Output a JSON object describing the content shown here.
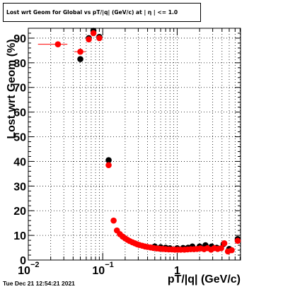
{
  "title": "Lost wrt Geom for Global vs pT/|q| (GeV/c) at | η | <= 1.0",
  "footer": "Tue Dec 21 12:54:21 2021",
  "chart_data": {
    "type": "scatter",
    "title": "Lost wrt Geom for Global vs pT/|q| (GeV/c) at | η | <= 1.0",
    "xlabel": "pT/|q| (GeV/c)",
    "ylabel": "Lost wrt Geom (%)",
    "xscale": "log",
    "xlim": [
      0.01,
      7.1
    ],
    "ylim": [
      0,
      94
    ],
    "x_ticks": [
      {
        "value": 0.01,
        "label": "10"
      },
      {
        "value": 0.1,
        "label": "10"
      },
      {
        "value": 1,
        "label": "1"
      }
    ],
    "x_tick_exponents": [
      "−2",
      "−1",
      ""
    ],
    "y_ticks": [
      0,
      10,
      20,
      30,
      40,
      50,
      60,
      70,
      80,
      90
    ],
    "grid": true,
    "legend": "none",
    "colors": {
      "series_black": "#000000",
      "series_red": "#ff0000"
    },
    "series": [
      {
        "color": "#000000",
        "x": [
          0.05,
          0.065,
          0.075,
          0.09,
          0.12,
          0.5,
          0.6,
          0.7,
          0.8,
          1.0,
          1.2,
          1.4,
          1.6,
          2.0,
          2.4,
          2.9,
          3.4,
          4.2,
          5.0,
          6.5
        ],
        "y": [
          81.5,
          90,
          93,
          90.5,
          40.5,
          5.5,
          5.2,
          5.0,
          4.8,
          4.8,
          4.9,
          5.0,
          5.5,
          5.5,
          6.0,
          5.5,
          5.0,
          6.5,
          4.5,
          8.5
        ]
      },
      {
        "color": "#ff0000",
        "x": [
          0.025,
          0.05,
          0.065,
          0.075,
          0.09,
          0.12,
          0.14,
          0.155,
          0.17,
          0.185,
          0.2,
          0.215,
          0.23,
          0.25,
          0.27,
          0.29,
          0.31,
          0.34,
          0.37,
          0.4,
          0.44,
          0.48,
          0.53,
          0.58,
          0.64,
          0.7,
          0.77,
          0.85,
          0.93,
          1.02,
          1.12,
          1.25,
          1.38,
          1.52,
          1.68,
          1.85,
          2.05,
          2.3,
          2.55,
          2.85,
          3.15,
          3.5,
          3.9,
          4.3,
          4.8,
          5.4,
          6.5
        ],
        "y": [
          87.5,
          84.5,
          89.5,
          92,
          90,
          38.5,
          16,
          12,
          10.5,
          9.5,
          8.8,
          8.2,
          7.7,
          7.2,
          6.8,
          6.4,
          6.1,
          5.8,
          5.5,
          5.3,
          5.1,
          4.9,
          4.7,
          4.6,
          4.5,
          4.4,
          4.3,
          4.3,
          4.2,
          4.2,
          4.2,
          4.2,
          4.3,
          4.4,
          4.4,
          4.5,
          4.7,
          4.4,
          4.8,
          4.2,
          4.8,
          4.5,
          4.8,
          6.8,
          3.5,
          4.0,
          7.8
        ],
        "xerr_lo": [
          0.0115,
          0.0085,
          0,
          0,
          0,
          0,
          0,
          0,
          0,
          0,
          0,
          0,
          0,
          0,
          0,
          0,
          0,
          0,
          0,
          0,
          0,
          0,
          0,
          0,
          0,
          0,
          0,
          0,
          0,
          0,
          0,
          0,
          0,
          0,
          0,
          0,
          0,
          0,
          0,
          0,
          0,
          0,
          0,
          0,
          0,
          0,
          0
        ],
        "xerr_hi": [
          0.0085,
          0.009,
          0,
          0,
          0,
          0,
          0,
          0,
          0,
          0,
          0,
          0,
          0,
          0,
          0,
          0,
          0,
          0,
          0,
          0,
          0,
          0,
          0,
          0,
          0,
          0,
          0,
          0,
          0,
          0,
          0,
          0,
          0,
          0,
          0,
          0,
          0,
          0,
          0,
          0,
          0,
          0,
          0,
          0,
          0,
          0,
          0
        ]
      }
    ]
  }
}
